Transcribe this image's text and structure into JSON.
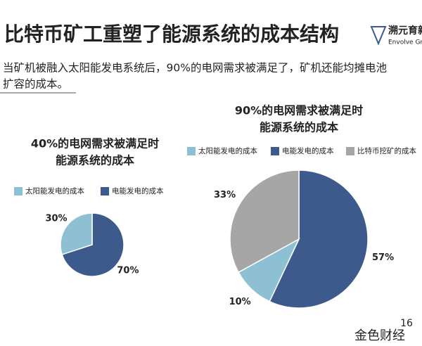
{
  "title": "比特币矿工重塑了能源系统的成本结构",
  "logo": {
    "name": "溯元育新",
    "sub": "Envolve Group"
  },
  "subtitle": [
    "当矿机被融入太阳能发电系统后，90%的电网需求被满足了，矿机还能均摊电池",
    "扩容的成本。"
  ],
  "page_number": 16,
  "watermark": "金色财经",
  "chart_data": [
    {
      "type": "pie",
      "title": [
        "40%的电网需求被满足时",
        "能源系统的成本"
      ],
      "categories": [
        "太阳能发电的成本",
        "电能发电的成本"
      ],
      "values": [
        30,
        70
      ],
      "value_labels": [
        "30%",
        "70%"
      ],
      "colors": [
        "#8ec0d3",
        "#3c5b8c"
      ]
    },
    {
      "type": "pie",
      "title": [
        "90%的电网需求被满足时",
        "能源系统的成本"
      ],
      "categories": [
        "太阳能发电的成本",
        "电能发电的成本",
        "比特币挖矿的成本"
      ],
      "values": [
        10,
        57,
        33
      ],
      "value_labels": [
        "10%",
        "57%",
        "33%"
      ],
      "colors": [
        "#8ec0d3",
        "#3c5b8c",
        "#a6a6a6"
      ]
    }
  ]
}
